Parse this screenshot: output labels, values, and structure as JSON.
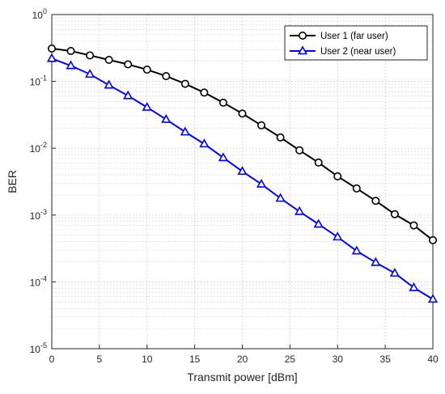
{
  "chart_data": {
    "type": "line",
    "xlabel": "Transmit power [dBm]",
    "ylabel": "BER",
    "xlim": [
      0,
      40
    ],
    "ylim": [
      1e-05,
      1
    ],
    "y_scale": "log",
    "grid": true,
    "minor_grid": true,
    "legend_position": "top-right",
    "x_ticks": [
      "0",
      "5",
      "10",
      "15",
      "20",
      "25",
      "30",
      "35",
      "40"
    ],
    "y_ticks": [
      {
        "base": "10",
        "exp": "0",
        "value": 1
      },
      {
        "base": "10",
        "exp": "-1",
        "value": 0.1
      },
      {
        "base": "10",
        "exp": "-2",
        "value": 0.01
      },
      {
        "base": "10",
        "exp": "-3",
        "value": 0.001
      },
      {
        "base": "10",
        "exp": "-4",
        "value": 0.0001
      },
      {
        "base": "10",
        "exp": "-5",
        "value": 1e-05
      }
    ],
    "x": [
      0,
      2,
      4,
      6,
      8,
      10,
      12,
      14,
      16,
      18,
      20,
      22,
      24,
      26,
      28,
      30,
      32,
      34,
      36,
      38,
      40
    ],
    "series": [
      {
        "name": "User 1 (far user)",
        "color": "#000000",
        "marker": "circle",
        "values": [
          0.31,
          0.285,
          0.245,
          0.21,
          0.18,
          0.15,
          0.12,
          0.092,
          0.068,
          0.048,
          0.033,
          0.022,
          0.0145,
          0.0093,
          0.0061,
          0.0038,
          0.0025,
          0.00163,
          0.00103,
          0.0007,
          0.00042
        ]
      },
      {
        "name": "User 2 (near user)",
        "color": "#0000ff",
        "marker": "triangle",
        "values": [
          0.22,
          0.172,
          0.128,
          0.088,
          0.061,
          0.041,
          0.027,
          0.0175,
          0.0116,
          0.0072,
          0.0045,
          0.0029,
          0.00178,
          0.00113,
          0.00073,
          0.00047,
          0.00029,
          0.000195,
          0.000135,
          8.2e-05,
          5.5e-05
        ]
      }
    ]
  }
}
